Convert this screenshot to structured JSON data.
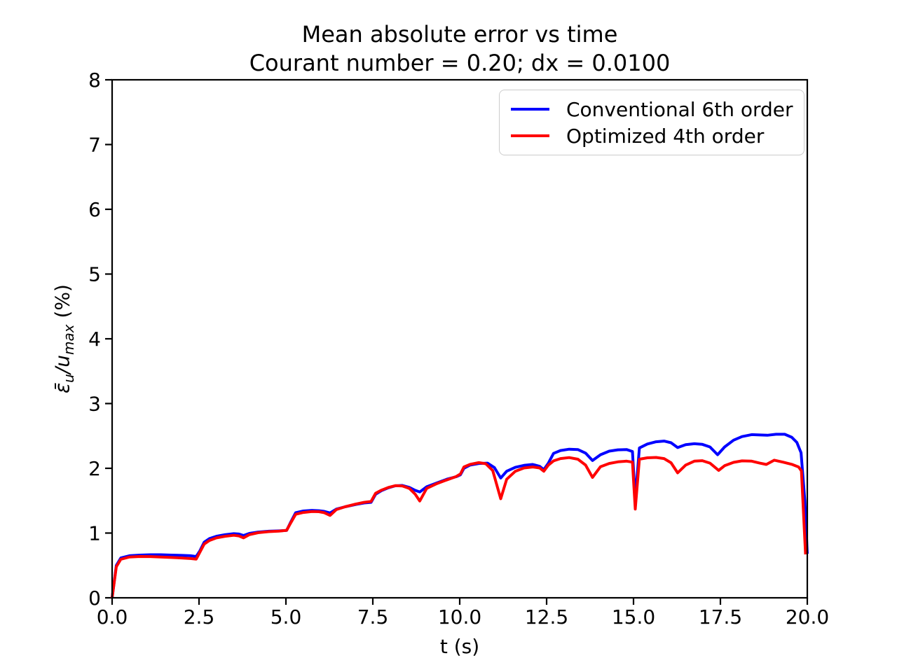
{
  "figure": {
    "ylabel_parts": {
      "epsilon_bar": "ε̄",
      "epsilon_sub": "u",
      "slash": "/",
      "u": "u",
      "u_sub": "max",
      "unit": " (%)"
    }
  },
  "chart_data": {
    "type": "line",
    "title": "Mean absolute error vs time",
    "subtitle": "Courant number = 0.20; dx = 0.0100",
    "xlabel": "t (s)",
    "ylabel": "eps_bar_u / u_max (%)",
    "xlim": [
      0,
      20
    ],
    "ylim": [
      0,
      8
    ],
    "grid": false,
    "legend_position": "upper right",
    "xticks": [
      {
        "v": 0,
        "label": "0.0"
      },
      {
        "v": 2.5,
        "label": "2.5"
      },
      {
        "v": 5,
        "label": "5.0"
      },
      {
        "v": 7.5,
        "label": "7.5"
      },
      {
        "v": 10,
        "label": "10.0"
      },
      {
        "v": 12.5,
        "label": "12.5"
      },
      {
        "v": 15,
        "label": "15.0"
      },
      {
        "v": 17.5,
        "label": "17.5"
      },
      {
        "v": 20,
        "label": "20.0"
      }
    ],
    "yticks": [
      {
        "v": 0,
        "label": "0"
      },
      {
        "v": 1,
        "label": "1"
      },
      {
        "v": 2,
        "label": "2"
      },
      {
        "v": 3,
        "label": "3"
      },
      {
        "v": 4,
        "label": "4"
      },
      {
        "v": 5,
        "label": "5"
      },
      {
        "v": 6,
        "label": "6"
      },
      {
        "v": 7,
        "label": "7"
      },
      {
        "v": 8,
        "label": "8"
      }
    ],
    "series": [
      {
        "name": "Conventional 6th order",
        "color": "#0000ff",
        "points": [
          [
            0,
            0
          ],
          [
            0.12,
            0.5
          ],
          [
            0.25,
            0.615
          ],
          [
            0.5,
            0.65
          ],
          [
            0.8,
            0.66
          ],
          [
            1.1,
            0.665
          ],
          [
            1.4,
            0.665
          ],
          [
            1.7,
            0.66
          ],
          [
            2.0,
            0.655
          ],
          [
            2.25,
            0.65
          ],
          [
            2.42,
            0.638
          ],
          [
            2.52,
            0.72
          ],
          [
            2.65,
            0.86
          ],
          [
            2.8,
            0.915
          ],
          [
            3.0,
            0.95
          ],
          [
            3.25,
            0.975
          ],
          [
            3.5,
            0.99
          ],
          [
            3.65,
            0.985
          ],
          [
            3.78,
            0.962
          ],
          [
            3.95,
            0.995
          ],
          [
            4.2,
            1.015
          ],
          [
            4.5,
            1.028
          ],
          [
            4.8,
            1.033
          ],
          [
            5.02,
            1.04
          ],
          [
            5.12,
            1.15
          ],
          [
            5.28,
            1.315
          ],
          [
            5.5,
            1.34
          ],
          [
            5.75,
            1.35
          ],
          [
            5.95,
            1.345
          ],
          [
            6.1,
            1.335
          ],
          [
            6.27,
            1.31
          ],
          [
            6.45,
            1.37
          ],
          [
            6.7,
            1.405
          ],
          [
            7.0,
            1.44
          ],
          [
            7.25,
            1.465
          ],
          [
            7.45,
            1.475
          ],
          [
            7.58,
            1.6
          ],
          [
            7.75,
            1.655
          ],
          [
            7.95,
            1.7
          ],
          [
            8.15,
            1.73
          ],
          [
            8.35,
            1.735
          ],
          [
            8.55,
            1.705
          ],
          [
            8.72,
            1.66
          ],
          [
            8.85,
            1.635
          ],
          [
            9.05,
            1.715
          ],
          [
            9.35,
            1.775
          ],
          [
            9.65,
            1.835
          ],
          [
            9.9,
            1.87
          ],
          [
            10.02,
            1.9
          ],
          [
            10.12,
            2.0
          ],
          [
            10.3,
            2.05
          ],
          [
            10.55,
            2.075
          ],
          [
            10.8,
            2.08
          ],
          [
            11.0,
            2.01
          ],
          [
            11.18,
            1.85
          ],
          [
            11.35,
            1.955
          ],
          [
            11.6,
            2.015
          ],
          [
            11.85,
            2.045
          ],
          [
            12.1,
            2.06
          ],
          [
            12.3,
            2.03
          ],
          [
            12.42,
            1.98
          ],
          [
            12.55,
            2.08
          ],
          [
            12.7,
            2.23
          ],
          [
            12.9,
            2.275
          ],
          [
            13.15,
            2.295
          ],
          [
            13.4,
            2.29
          ],
          [
            13.62,
            2.235
          ],
          [
            13.82,
            2.12
          ],
          [
            14.05,
            2.21
          ],
          [
            14.3,
            2.265
          ],
          [
            14.55,
            2.285
          ],
          [
            14.8,
            2.29
          ],
          [
            14.97,
            2.26
          ],
          [
            15.05,
            1.52
          ],
          [
            15.17,
            2.315
          ],
          [
            15.4,
            2.375
          ],
          [
            15.65,
            2.41
          ],
          [
            15.88,
            2.42
          ],
          [
            16.08,
            2.395
          ],
          [
            16.27,
            2.32
          ],
          [
            16.5,
            2.365
          ],
          [
            16.75,
            2.38
          ],
          [
            16.98,
            2.37
          ],
          [
            17.2,
            2.33
          ],
          [
            17.42,
            2.21
          ],
          [
            17.62,
            2.33
          ],
          [
            17.88,
            2.435
          ],
          [
            18.12,
            2.49
          ],
          [
            18.4,
            2.52
          ],
          [
            18.65,
            2.515
          ],
          [
            18.85,
            2.51
          ],
          [
            19.1,
            2.525
          ],
          [
            19.35,
            2.525
          ],
          [
            19.55,
            2.48
          ],
          [
            19.7,
            2.4
          ],
          [
            19.82,
            2.24
          ],
          [
            19.93,
            1.5
          ],
          [
            20,
            0.68
          ]
        ]
      },
      {
        "name": "Optimized 4th order",
        "color": "#ff0000",
        "points": [
          [
            0,
            0
          ],
          [
            0.12,
            0.48
          ],
          [
            0.25,
            0.595
          ],
          [
            0.5,
            0.63
          ],
          [
            0.8,
            0.638
          ],
          [
            1.1,
            0.637
          ],
          [
            1.4,
            0.63
          ],
          [
            1.7,
            0.623
          ],
          [
            2.0,
            0.615
          ],
          [
            2.25,
            0.607
          ],
          [
            2.42,
            0.598
          ],
          [
            2.52,
            0.7
          ],
          [
            2.65,
            0.83
          ],
          [
            2.8,
            0.885
          ],
          [
            3.0,
            0.925
          ],
          [
            3.25,
            0.95
          ],
          [
            3.5,
            0.965
          ],
          [
            3.65,
            0.955
          ],
          [
            3.78,
            0.925
          ],
          [
            3.95,
            0.975
          ],
          [
            4.2,
            1.005
          ],
          [
            4.5,
            1.022
          ],
          [
            4.8,
            1.03
          ],
          [
            5.02,
            1.042
          ],
          [
            5.12,
            1.14
          ],
          [
            5.28,
            1.29
          ],
          [
            5.5,
            1.318
          ],
          [
            5.75,
            1.332
          ],
          [
            5.95,
            1.33
          ],
          [
            6.1,
            1.315
          ],
          [
            6.27,
            1.272
          ],
          [
            6.45,
            1.362
          ],
          [
            6.7,
            1.405
          ],
          [
            7.0,
            1.447
          ],
          [
            7.25,
            1.475
          ],
          [
            7.45,
            1.488
          ],
          [
            7.58,
            1.615
          ],
          [
            7.75,
            1.663
          ],
          [
            7.95,
            1.705
          ],
          [
            8.15,
            1.732
          ],
          [
            8.35,
            1.728
          ],
          [
            8.55,
            1.69
          ],
          [
            8.72,
            1.6
          ],
          [
            8.85,
            1.495
          ],
          [
            9.05,
            1.69
          ],
          [
            9.35,
            1.765
          ],
          [
            9.65,
            1.825
          ],
          [
            9.9,
            1.873
          ],
          [
            10.02,
            1.912
          ],
          [
            10.12,
            2.02
          ],
          [
            10.3,
            2.062
          ],
          [
            10.55,
            2.088
          ],
          [
            10.75,
            2.07
          ],
          [
            10.95,
            1.965
          ],
          [
            11.18,
            1.53
          ],
          [
            11.35,
            1.83
          ],
          [
            11.6,
            1.955
          ],
          [
            11.85,
            2.005
          ],
          [
            12.1,
            2.02
          ],
          [
            12.3,
            2.005
          ],
          [
            12.42,
            1.955
          ],
          [
            12.55,
            2.05
          ],
          [
            12.7,
            2.115
          ],
          [
            12.9,
            2.15
          ],
          [
            13.15,
            2.165
          ],
          [
            13.4,
            2.14
          ],
          [
            13.62,
            2.05
          ],
          [
            13.82,
            1.86
          ],
          [
            14.05,
            2.025
          ],
          [
            14.3,
            2.075
          ],
          [
            14.55,
            2.1
          ],
          [
            14.8,
            2.11
          ],
          [
            14.97,
            2.095
          ],
          [
            15.05,
            1.37
          ],
          [
            15.17,
            2.14
          ],
          [
            15.4,
            2.162
          ],
          [
            15.65,
            2.168
          ],
          [
            15.88,
            2.15
          ],
          [
            16.08,
            2.085
          ],
          [
            16.27,
            1.93
          ],
          [
            16.5,
            2.05
          ],
          [
            16.75,
            2.11
          ],
          [
            16.98,
            2.118
          ],
          [
            17.2,
            2.08
          ],
          [
            17.45,
            1.968
          ],
          [
            17.62,
            2.04
          ],
          [
            17.88,
            2.092
          ],
          [
            18.12,
            2.115
          ],
          [
            18.4,
            2.11
          ],
          [
            18.62,
            2.082
          ],
          [
            18.82,
            2.06
          ],
          [
            19.05,
            2.125
          ],
          [
            19.3,
            2.095
          ],
          [
            19.55,
            2.062
          ],
          [
            19.75,
            2.02
          ],
          [
            19.83,
            1.96
          ],
          [
            19.95,
            0.67
          ]
        ]
      }
    ]
  }
}
